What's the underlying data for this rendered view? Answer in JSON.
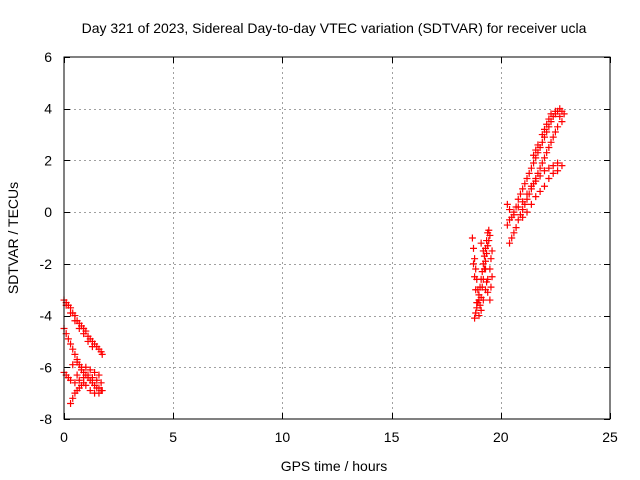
{
  "chart_data": {
    "type": "scatter",
    "title": "Day 321 of 2023, Sidereal Day-to-day VTEC variation (SDTVAR) for receiver ucla",
    "xlabel": "GPS time / hours",
    "ylabel": "SDTVAR / TECUs",
    "xlim": [
      0,
      25
    ],
    "ylim": [
      -8,
      6
    ],
    "xticks": [
      0,
      5,
      10,
      15,
      20,
      25
    ],
    "yticks": [
      -8,
      -6,
      -4,
      -2,
      0,
      2,
      4,
      6
    ],
    "grid": true,
    "marker": "+",
    "color": "#ff0000",
    "series": [
      {
        "points": [
          [
            0.0,
            -3.4
          ],
          [
            0.1,
            -3.5
          ],
          [
            0.2,
            -3.6
          ],
          [
            0.3,
            -3.7
          ],
          [
            0.4,
            -3.9
          ],
          [
            0.5,
            -4.0
          ],
          [
            0.6,
            -4.2
          ],
          [
            0.7,
            -4.3
          ],
          [
            0.8,
            -4.4
          ],
          [
            0.9,
            -4.5
          ],
          [
            1.0,
            -4.6
          ],
          [
            1.1,
            -4.8
          ],
          [
            1.2,
            -4.9
          ],
          [
            1.3,
            -5.0
          ],
          [
            1.4,
            -5.1
          ],
          [
            1.5,
            -5.2
          ],
          [
            1.6,
            -5.3
          ],
          [
            1.7,
            -5.4
          ],
          [
            1.75,
            -5.5
          ],
          [
            0.1,
            -3.6
          ],
          [
            0.3,
            -3.9
          ],
          [
            0.5,
            -4.2
          ],
          [
            0.7,
            -4.5
          ],
          [
            0.9,
            -4.7
          ],
          [
            1.1,
            -5.0
          ],
          [
            1.3,
            -5.2
          ],
          [
            0.0,
            -4.5
          ],
          [
            0.1,
            -4.7
          ],
          [
            0.2,
            -4.9
          ],
          [
            0.3,
            -5.1
          ],
          [
            0.4,
            -5.3
          ],
          [
            0.5,
            -5.5
          ],
          [
            0.6,
            -5.7
          ],
          [
            0.7,
            -5.9
          ],
          [
            0.8,
            -6.0
          ],
          [
            0.9,
            -6.2
          ],
          [
            1.0,
            -6.3
          ],
          [
            1.1,
            -6.4
          ],
          [
            1.2,
            -6.5
          ],
          [
            1.3,
            -6.6
          ],
          [
            1.4,
            -6.7
          ],
          [
            1.5,
            -6.8
          ],
          [
            1.6,
            -6.8
          ],
          [
            1.7,
            -6.9
          ],
          [
            0.0,
            -6.2
          ],
          [
            0.1,
            -6.3
          ],
          [
            0.2,
            -6.4
          ],
          [
            0.3,
            -6.5
          ],
          [
            0.5,
            -6.6
          ],
          [
            0.7,
            -6.5
          ],
          [
            0.9,
            -6.4
          ],
          [
            1.1,
            -6.3
          ],
          [
            1.3,
            -6.4
          ],
          [
            1.5,
            -6.5
          ],
          [
            1.7,
            -6.6
          ],
          [
            0.3,
            -7.4
          ],
          [
            0.4,
            -7.2
          ],
          [
            0.5,
            -7.0
          ],
          [
            0.6,
            -6.9
          ],
          [
            0.7,
            -6.8
          ],
          [
            0.8,
            -6.7
          ],
          [
            0.9,
            -6.6
          ],
          [
            1.0,
            -6.7
          ],
          [
            1.2,
            -6.9
          ],
          [
            1.4,
            -7.0
          ],
          [
            1.6,
            -7.0
          ],
          [
            1.75,
            -6.9
          ],
          [
            0.6,
            -6.3
          ],
          [
            0.8,
            -6.1
          ],
          [
            1.0,
            -6.0
          ],
          [
            1.2,
            -6.1
          ],
          [
            1.4,
            -6.2
          ],
          [
            1.6,
            -6.3
          ],
          [
            0.4,
            -5.9
          ],
          [
            0.6,
            -5.8
          ]
        ]
      },
      {
        "points": [
          [
            18.7,
            -1.0
          ],
          [
            18.75,
            -1.4
          ],
          [
            18.8,
            -1.8
          ],
          [
            18.85,
            -2.2
          ],
          [
            18.9,
            -2.6
          ],
          [
            18.95,
            -3.0
          ],
          [
            19.0,
            -3.4
          ],
          [
            19.05,
            -3.6
          ],
          [
            19.1,
            -3.3
          ],
          [
            19.15,
            -2.9
          ],
          [
            19.2,
            -2.6
          ],
          [
            19.25,
            -2.2
          ],
          [
            19.3,
            -1.9
          ],
          [
            19.35,
            -1.6
          ],
          [
            19.4,
            -1.3
          ],
          [
            19.45,
            -1.1
          ],
          [
            19.5,
            -0.9
          ],
          [
            18.8,
            -4.1
          ],
          [
            18.85,
            -3.9
          ],
          [
            18.9,
            -3.7
          ],
          [
            18.95,
            -3.5
          ],
          [
            19.0,
            -3.2
          ],
          [
            19.05,
            -2.9
          ],
          [
            19.1,
            -2.6
          ],
          [
            19.15,
            -2.3
          ],
          [
            19.2,
            -2.0
          ],
          [
            19.25,
            -1.7
          ],
          [
            19.3,
            -1.4
          ],
          [
            19.35,
            -1.1
          ],
          [
            19.4,
            -0.8
          ],
          [
            19.45,
            -0.7
          ],
          [
            18.75,
            -2.0
          ],
          [
            18.8,
            -2.5
          ],
          [
            18.85,
            -3.0
          ],
          [
            18.9,
            -3.5
          ],
          [
            19.0,
            -4.0
          ],
          [
            19.1,
            -3.8
          ],
          [
            19.2,
            -3.4
          ],
          [
            19.3,
            -3.0
          ],
          [
            19.4,
            -2.6
          ],
          [
            19.5,
            -2.2
          ],
          [
            19.55,
            -1.8
          ],
          [
            19.6,
            -1.5
          ],
          [
            19.1,
            -1.2
          ],
          [
            19.2,
            -1.5
          ],
          [
            19.3,
            -2.2
          ],
          [
            19.35,
            -2.7
          ],
          [
            19.4,
            -3.1
          ],
          [
            19.5,
            -3.4
          ],
          [
            19.55,
            -2.9
          ],
          [
            19.6,
            -2.5
          ]
        ]
      },
      {
        "points": [
          [
            20.3,
            0.3
          ],
          [
            20.4,
            0.1
          ],
          [
            20.5,
            -0.2
          ],
          [
            20.6,
            -0.1
          ],
          [
            20.7,
            0.2
          ],
          [
            20.8,
            0.5
          ],
          [
            20.9,
            0.7
          ],
          [
            21.0,
            0.9
          ],
          [
            21.1,
            1.1
          ],
          [
            21.2,
            1.3
          ],
          [
            21.3,
            1.5
          ],
          [
            21.4,
            1.7
          ],
          [
            21.5,
            1.9
          ],
          [
            21.6,
            2.1
          ],
          [
            21.7,
            2.3
          ],
          [
            21.8,
            2.5
          ],
          [
            21.9,
            2.7
          ],
          [
            22.0,
            2.9
          ],
          [
            22.1,
            3.1
          ],
          [
            22.2,
            3.3
          ],
          [
            22.3,
            3.5
          ],
          [
            22.4,
            3.7
          ],
          [
            22.5,
            3.8
          ],
          [
            22.6,
            3.9
          ],
          [
            22.7,
            4.0
          ],
          [
            22.8,
            3.9
          ],
          [
            22.9,
            3.8
          ],
          [
            20.4,
            -1.2
          ],
          [
            20.5,
            -1.0
          ],
          [
            20.6,
            -0.8
          ],
          [
            20.7,
            -0.6
          ],
          [
            20.8,
            -0.3
          ],
          [
            20.9,
            -0.1
          ],
          [
            21.0,
            0.1
          ],
          [
            21.1,
            0.3
          ],
          [
            21.2,
            0.5
          ],
          [
            21.3,
            0.7
          ],
          [
            21.4,
            0.9
          ],
          [
            21.5,
            1.1
          ],
          [
            21.6,
            1.3
          ],
          [
            21.7,
            1.5
          ],
          [
            21.8,
            1.7
          ],
          [
            21.9,
            1.9
          ],
          [
            22.0,
            2.1
          ],
          [
            22.1,
            2.3
          ],
          [
            22.2,
            2.5
          ],
          [
            22.3,
            2.7
          ],
          [
            22.4,
            2.9
          ],
          [
            22.5,
            3.1
          ],
          [
            22.6,
            3.3
          ],
          [
            20.3,
            -0.5
          ],
          [
            20.4,
            -0.3
          ],
          [
            20.6,
            0.0
          ],
          [
            20.8,
            0.2
          ],
          [
            21.0,
            0.4
          ],
          [
            21.2,
            0.7
          ],
          [
            21.4,
            1.0
          ],
          [
            21.6,
            1.2
          ],
          [
            21.8,
            1.4
          ],
          [
            22.0,
            1.6
          ],
          [
            22.2,
            1.7
          ],
          [
            22.4,
            1.8
          ],
          [
            22.6,
            1.9
          ],
          [
            22.8,
            1.8
          ],
          [
            21.0,
            -0.2
          ],
          [
            21.2,
            0.0
          ],
          [
            21.4,
            0.3
          ],
          [
            21.6,
            0.6
          ],
          [
            21.8,
            0.8
          ],
          [
            22.0,
            1.0
          ],
          [
            22.2,
            1.3
          ],
          [
            22.4,
            1.5
          ],
          [
            22.6,
            1.6
          ],
          [
            21.5,
            2.2
          ],
          [
            21.6,
            2.4
          ],
          [
            21.7,
            2.6
          ],
          [
            21.9,
            3.0
          ],
          [
            22.0,
            3.2
          ],
          [
            22.1,
            3.4
          ],
          [
            22.2,
            3.6
          ],
          [
            22.3,
            3.8
          ],
          [
            22.5,
            3.9
          ],
          [
            22.7,
            3.7
          ],
          [
            22.8,
            3.5
          ]
        ]
      }
    ]
  }
}
